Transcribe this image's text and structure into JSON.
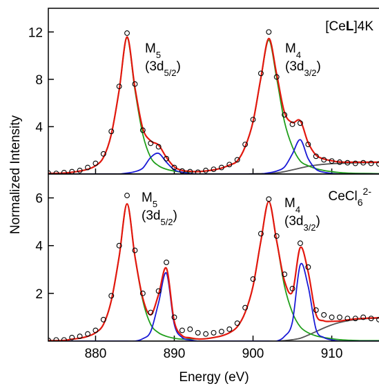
{
  "chart_data": [
    {
      "type": "line",
      "ylabel": "Normalized Intensity",
      "label": {
        "parts": [
          "[Ce",
          "L",
          "]4K"
        ],
        "styles": [
          "normal",
          "bold",
          "normal"
        ]
      },
      "annotations": [
        {
          "label": "M",
          "sub": "5",
          "line2": "(3d",
          "sub2": "5/2",
          "close": ")"
        },
        {
          "label": "M",
          "sub": "4",
          "line2": "(3d",
          "sub2": "3/2",
          "close": ")"
        }
      ],
      "xlim": [
        874,
        916
      ],
      "xticks": [
        880,
        890,
        900,
        910
      ],
      "ylim": [
        0,
        14
      ],
      "yticks": [
        4,
        8,
        12
      ],
      "x": [
        874,
        875,
        876,
        877,
        878,
        879,
        880,
        881,
        882,
        883,
        884,
        885,
        886,
        887,
        888,
        889,
        890,
        891,
        892,
        893,
        894,
        895,
        896,
        897,
        898,
        899,
        900,
        901,
        902,
        903,
        904,
        905,
        906,
        907,
        908,
        909,
        910,
        911,
        912,
        913,
        914,
        915,
        916
      ],
      "series": [
        {
          "color": "#555555",
          "style": "line",
          "values": [
            0,
            0,
            0,
            0,
            0,
            0,
            0,
            0,
            0,
            0,
            0,
            0,
            0,
            0,
            0,
            0,
            0,
            0,
            0,
            0,
            0,
            0,
            0,
            0,
            0,
            0,
            0.02,
            0.03,
            0.05,
            0.1,
            0.2,
            0.35,
            0.5,
            0.65,
            0.75,
            0.82,
            0.87,
            0.9,
            0.92,
            0.94,
            0.95,
            0.96,
            0.97
          ]
        },
        {
          "color": "#1f9e1a",
          "style": "line",
          "values": [
            0.05,
            0.06,
            0.08,
            0.15,
            0.25,
            0.4,
            0.7,
            1.4,
            3.35,
            7.1,
            11.5,
            7.1,
            3.35,
            1.4,
            0.7,
            0.4,
            0.25,
            0.15,
            0.18,
            0.2,
            0.26,
            0.35,
            0.5,
            0.75,
            1.1,
            2.3,
            4.4,
            8.1,
            11.3,
            8.1,
            4.4,
            2.3,
            1.1,
            0.7,
            0.45,
            0.3,
            0.2,
            0.12,
            0.08,
            0.06,
            0.05,
            0.04,
            0.03
          ]
        },
        {
          "color": "#1a1ad6",
          "style": "line",
          "values": [
            0,
            0,
            0,
            0,
            0,
            0,
            0,
            0,
            0,
            0,
            0.08,
            0.2,
            0.5,
            1.4,
            1.75,
            1.0,
            0.35,
            0.15,
            0.05,
            0,
            0,
            0,
            0,
            0,
            0,
            0,
            0,
            0,
            0.1,
            0.25,
            0.6,
            1.7,
            2.9,
            1.3,
            0.4,
            0.15,
            0.05,
            0,
            0,
            0,
            0,
            0,
            0
          ]
        },
        {
          "color": "#e3170e",
          "style": "line",
          "values": [
            0.05,
            0.06,
            0.08,
            0.15,
            0.25,
            0.4,
            0.7,
            1.4,
            3.35,
            7.1,
            11.58,
            7.3,
            3.85,
            2.8,
            2.45,
            1.4,
            0.6,
            0.3,
            0.23,
            0.2,
            0.26,
            0.35,
            0.5,
            0.75,
            1.1,
            2.3,
            4.42,
            8.13,
            11.45,
            8.45,
            5.2,
            4.35,
            4.5,
            2.65,
            1.6,
            1.27,
            1.12,
            1.02,
            1.0,
            1.0,
            1.0,
            1.0,
            1.0
          ]
        },
        {
          "color": "#000000",
          "style": "markers",
          "values": [
            0.08,
            0.05,
            0.12,
            0.2,
            0.3,
            0.55,
            0.9,
            1.7,
            3.6,
            7.4,
            11.9,
            7.6,
            3.7,
            2.6,
            2.3,
            1.3,
            0.55,
            0.25,
            0.2,
            0.15,
            0.3,
            0.4,
            0.55,
            0.8,
            1.2,
            2.5,
            4.6,
            8.5,
            12.0,
            8.2,
            5.0,
            4.2,
            4.3,
            2.5,
            1.5,
            1.2,
            1.1,
            1.0,
            0.95,
            0.9,
            0.95,
            0.9,
            0.85
          ]
        }
      ]
    },
    {
      "type": "line",
      "xlabel": "Energy (eV)",
      "label": {
        "parts": [
          "CeCl",
          "6",
          "2-"
        ],
        "styles": [
          "normal",
          "sub",
          "super"
        ]
      },
      "annotations": [
        {
          "label": "M",
          "sub": "5",
          "line2": "(3d",
          "sub2": "5/2",
          "close": ")"
        },
        {
          "label": "M",
          "sub": "4",
          "line2": "(3d",
          "sub2": "3/2",
          "close": ")"
        }
      ],
      "xlim": [
        874,
        916
      ],
      "xticks": [
        880,
        890,
        900,
        910
      ],
      "ylim": [
        0,
        7
      ],
      "yticks": [
        2,
        4,
        6
      ],
      "x": [
        874,
        875,
        876,
        877,
        878,
        879,
        880,
        881,
        882,
        883,
        884,
        885,
        886,
        887,
        888,
        889,
        890,
        891,
        892,
        893,
        894,
        895,
        896,
        897,
        898,
        899,
        900,
        901,
        902,
        903,
        904,
        905,
        906,
        907,
        908,
        909,
        910,
        911,
        912,
        913,
        914,
        915,
        916
      ],
      "series": [
        {
          "color": "#555555",
          "style": "line",
          "values": [
            0,
            0,
            0,
            0,
            0,
            0,
            0,
            0,
            0,
            0,
            0,
            0,
            0,
            0,
            0,
            0,
            0,
            0,
            0,
            0,
            0,
            0,
            0,
            0,
            0,
            0,
            0,
            0,
            0,
            0,
            0.02,
            0.06,
            0.12,
            0.25,
            0.4,
            0.55,
            0.68,
            0.78,
            0.85,
            0.9,
            0.93,
            0.95,
            0.96
          ]
        },
        {
          "color": "#1f9e1a",
          "style": "line",
          "values": [
            0.02,
            0.02,
            0.03,
            0.08,
            0.12,
            0.2,
            0.35,
            0.7,
            1.7,
            3.55,
            5.75,
            3.55,
            1.7,
            0.7,
            0.35,
            0.2,
            0.12,
            0.08,
            0.09,
            0.09,
            0.1,
            0.15,
            0.22,
            0.35,
            0.6,
            1.2,
            2.3,
            4.2,
            5.85,
            4.2,
            2.3,
            1.2,
            0.6,
            0.35,
            0.22,
            0.15,
            0.1,
            0.06,
            0.04,
            0.03,
            0.02,
            0.02,
            0.02
          ]
        },
        {
          "color": "#1a1ad6",
          "style": "line",
          "values": [
            0,
            0,
            0,
            0,
            0,
            0,
            0,
            0,
            0,
            0,
            0,
            0,
            0.1,
            0.4,
            1.6,
            2.85,
            0.7,
            0.15,
            0.05,
            0,
            0,
            0,
            0,
            0,
            0,
            0,
            0,
            0,
            0,
            0,
            0.2,
            0.8,
            3.2,
            2.3,
            0.5,
            0.15,
            0.05,
            0,
            0,
            0,
            0,
            0,
            0
          ]
        },
        {
          "color": "#e3170e",
          "style": "line",
          "values": [
            0.02,
            0.02,
            0.03,
            0.08,
            0.12,
            0.2,
            0.35,
            0.7,
            1.7,
            3.55,
            5.75,
            3.55,
            1.8,
            1.1,
            1.95,
            3.05,
            0.82,
            0.23,
            0.14,
            0.09,
            0.1,
            0.15,
            0.22,
            0.35,
            0.6,
            1.2,
            2.3,
            4.2,
            5.85,
            4.2,
            2.52,
            2.06,
            3.92,
            2.9,
            1.12,
            0.85,
            0.83,
            0.84,
            0.89,
            0.93,
            0.95,
            0.97,
            0.98
          ]
        },
        {
          "color": "#000000",
          "style": "markers",
          "values": [
            0.03,
            0.05,
            0.05,
            0.15,
            0.2,
            0.3,
            0.45,
            0.9,
            1.9,
            4.0,
            6.1,
            3.8,
            2.0,
            1.2,
            2.1,
            3.3,
            1.0,
            0.45,
            0.5,
            0.35,
            0.3,
            0.35,
            0.4,
            0.5,
            0.75,
            1.4,
            2.6,
            4.5,
            5.95,
            4.4,
            2.8,
            2.2,
            4.1,
            3.1,
            1.3,
            1.1,
            1.0,
            1.0,
            0.95,
            0.95,
            1.0,
            0.95,
            0.9
          ]
        }
      ]
    }
  ]
}
